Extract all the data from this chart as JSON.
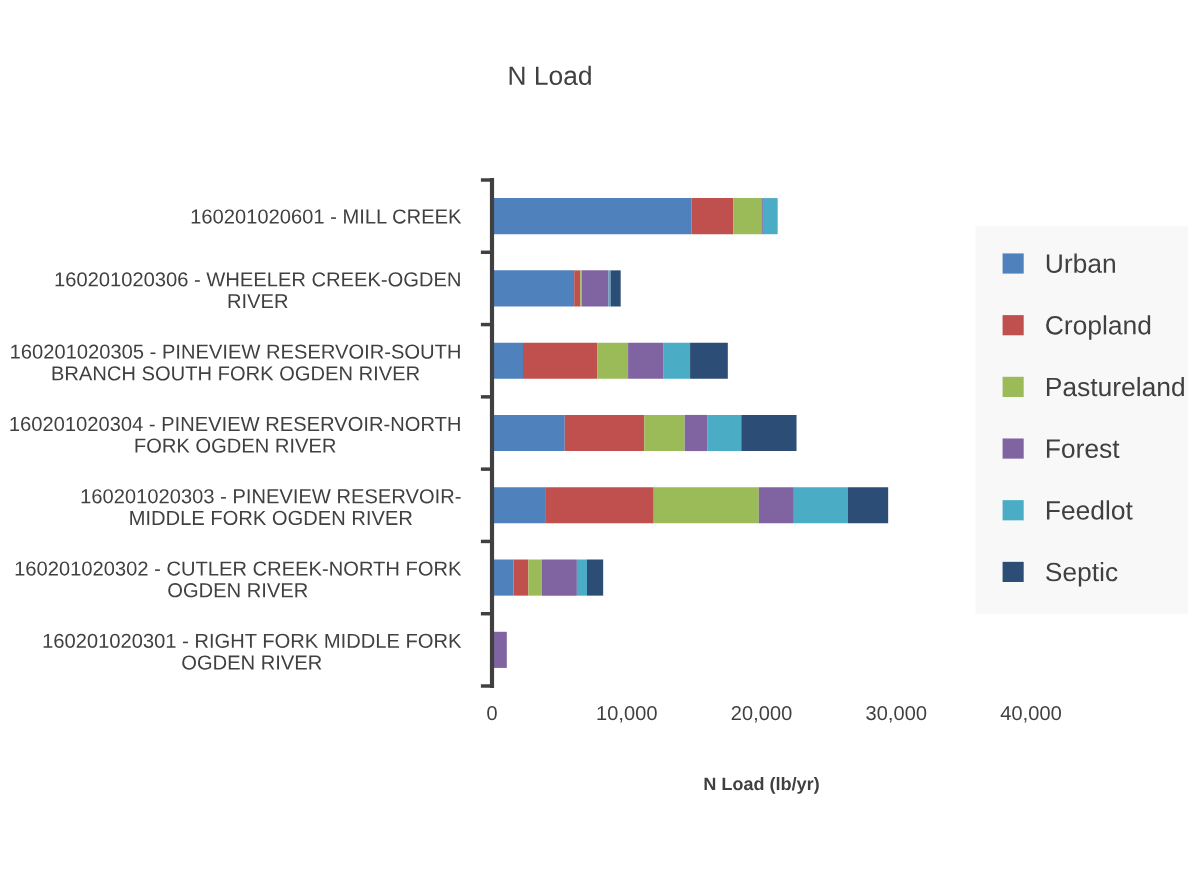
{
  "chart_data": {
    "type": "bar",
    "orientation": "horizontal",
    "stacked": true,
    "title": "N Load",
    "xlabel": "N Load (lb/yr)",
    "categories": [
      "160201020601 - MILL CREEK",
      "160201020306 - WHEELER CREEK-OGDEN\nRIVER",
      "160201020305 - PINEVIEW RESERVOIR-SOUTH\nBRANCH SOUTH FORK OGDEN RIVER",
      "160201020304 - PINEVIEW RESERVOIR-NORTH\nFORK OGDEN RIVER",
      "160201020303 - PINEVIEW RESERVOIR-\nMIDDLE FORK OGDEN RIVER",
      "160201020302 - CUTLER CREEK-NORTH FORK\nOGDEN RIVER",
      "160201020301 - RIGHT FORK MIDDLE FORK\nOGDEN RIVER"
    ],
    "series": [
      {
        "name": "Urban",
        "color": "#4f81bd",
        "values": [
          14800,
          6100,
          2300,
          5400,
          4000,
          1600,
          0
        ]
      },
      {
        "name": "Cropland",
        "color": "#c0504d",
        "values": [
          3100,
          450,
          5500,
          5900,
          8000,
          1100,
          0
        ]
      },
      {
        "name": "Pastureland",
        "color": "#9bbb59",
        "values": [
          2100,
          100,
          2300,
          3000,
          7800,
          1000,
          0
        ]
      },
      {
        "name": "Forest",
        "color": "#8064a2",
        "values": [
          100,
          2000,
          2600,
          1700,
          2600,
          2600,
          1100
        ]
      },
      {
        "name": "Feedlot",
        "color": "#4bacc6",
        "values": [
          1100,
          150,
          2000,
          2500,
          4000,
          750,
          0
        ]
      },
      {
        "name": "Septic",
        "color": "#2c4d75",
        "values": [
          0,
          750,
          2800,
          4100,
          3000,
          1200,
          0
        ]
      }
    ],
    "xlim": [
      0,
      40000
    ],
    "xticks": [
      {
        "value": 0,
        "label": "0"
      },
      {
        "value": 10000,
        "label": "10,000"
      },
      {
        "value": 20000,
        "label": "20,000"
      },
      {
        "value": 30000,
        "label": "30,000"
      },
      {
        "value": 40000,
        "label": "40,000"
      }
    ],
    "grid": false,
    "legend": "right"
  }
}
